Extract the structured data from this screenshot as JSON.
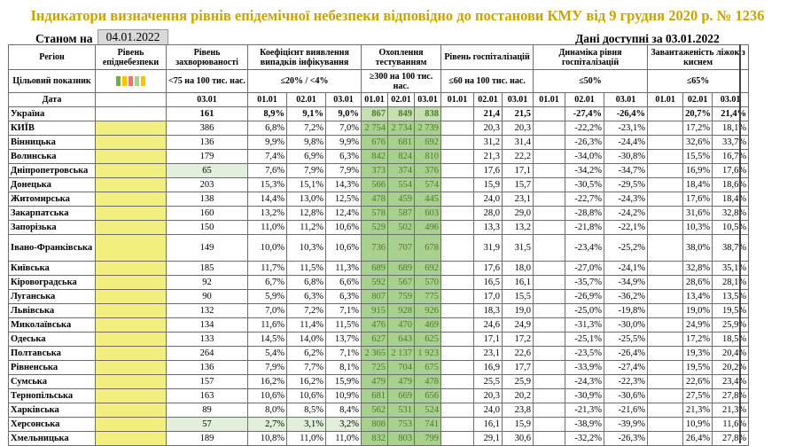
{
  "title": "Індикатори визначення рівнів епідемічної небезпеки відповідно до постанови КМУ від 9 грудня 2020 р. № 1236",
  "asof_label": "Станом на",
  "asof_date": "04.01.2022",
  "available_label": "Дані доступні за 03.01.2022",
  "headers": {
    "region": "Регіон",
    "target": "Цільовий показник",
    "date": "Дата",
    "level": "Рівень епіднебезпеки",
    "incidence": "Рівень захворюваності",
    "incidence_target": "<75 на 100 тис. нас.",
    "positivity": "Коефіцієнт виявлення випадків інфікування",
    "positivity_target": "≤20% / <4%",
    "testing": "Охоплення тестуванням",
    "testing_target": "≥300 на 100 тис. нас.",
    "hosp": "Рівень госпіталізацій",
    "hosp_target": "≤60 на 100 тис. нас.",
    "hosp_dyn": "Динаміка рівня госпіталізацій",
    "hosp_dyn_target": "≤50%",
    "oxygen": "Завантаженість ліжок з киснем",
    "oxygen_target": "≤65%"
  },
  "dates": {
    "d0301": "03.01",
    "d0101": "01.01",
    "d0201": "02.01"
  },
  "level_colors": [
    "#70ad47",
    "#ffc000",
    "#ff6d6d",
    "#a9d08e",
    "#ffc000"
  ],
  "rows": [
    {
      "region": "Україна",
      "inc": "161",
      "pos": [
        "8,9%",
        "9,1%",
        "9,0%"
      ],
      "test": [
        "867",
        "849",
        "838"
      ],
      "hosp": [
        "",
        "21,4",
        "21,5"
      ],
      "dyn": [
        "",
        "-27,4%",
        "-26,4%"
      ],
      "oxy": [
        "",
        "20,7%",
        "21,4%"
      ],
      "bold": true
    },
    {
      "region": "КИЇВ",
      "inc": "386",
      "pos": [
        "6,8%",
        "7,2%",
        "7,0%"
      ],
      "test": [
        "2 754",
        "2 734",
        "2 739"
      ],
      "hosp": [
        "",
        "20,3",
        "20,3"
      ],
      "dyn": [
        "",
        "-22,2%",
        "-23,1%"
      ],
      "oxy": [
        "",
        "17,2%",
        "18,1%"
      ]
    },
    {
      "region": "Вінницька",
      "inc": "136",
      "pos": [
        "9,9%",
        "9,8%",
        "9,9%"
      ],
      "test": [
        "676",
        "681",
        "692"
      ],
      "hosp": [
        "",
        "31,2",
        "31,4"
      ],
      "dyn": [
        "",
        "-26,3%",
        "-24,4%"
      ],
      "oxy": [
        "",
        "32,6%",
        "33,7%"
      ]
    },
    {
      "region": "Волинська",
      "inc": "179",
      "pos": [
        "7,4%",
        "6,9%",
        "6,3%"
      ],
      "test": [
        "842",
        "824",
        "810"
      ],
      "hosp": [
        "",
        "21,3",
        "22,2"
      ],
      "dyn": [
        "",
        "-34,0%",
        "-30,8%"
      ],
      "oxy": [
        "",
        "15,5%",
        "16,7%"
      ]
    },
    {
      "region": "Дніпропетровська",
      "inc": "65",
      "pos": [
        "7,6%",
        "7,9%",
        "7,9%"
      ],
      "test": [
        "373",
        "374",
        "376"
      ],
      "hosp": [
        "",
        "17,6",
        "17,1"
      ],
      "dyn": [
        "",
        "-34,2%",
        "-34,7%"
      ],
      "oxy": [
        "",
        "16,9%",
        "17,6%"
      ],
      "incgreen": true
    },
    {
      "region": "Донецька",
      "inc": "203",
      "pos": [
        "15,3%",
        "15,1%",
        "14,3%"
      ],
      "test": [
        "566",
        "554",
        "574"
      ],
      "hosp": [
        "",
        "15,9",
        "15,7"
      ],
      "dyn": [
        "",
        "-30,5%",
        "-29,5%"
      ],
      "oxy": [
        "",
        "18,4%",
        "18,6%"
      ]
    },
    {
      "region": "Житомирська",
      "inc": "138",
      "pos": [
        "14,4%",
        "13,0%",
        "12,5%"
      ],
      "test": [
        "478",
        "459",
        "445"
      ],
      "hosp": [
        "",
        "24,0",
        "23,1"
      ],
      "dyn": [
        "",
        "-22,7%",
        "-24,3%"
      ],
      "oxy": [
        "",
        "17,6%",
        "18,4%"
      ]
    },
    {
      "region": "Закарпатська",
      "inc": "160",
      "pos": [
        "13,2%",
        "12,8%",
        "12,4%"
      ],
      "test": [
        "578",
        "587",
        "603"
      ],
      "hosp": [
        "",
        "28,0",
        "29,0"
      ],
      "dyn": [
        "",
        "-28,8%",
        "-24,2%"
      ],
      "oxy": [
        "",
        "31,6%",
        "32,8%"
      ]
    },
    {
      "region": "Запорізька",
      "inc": "150",
      "pos": [
        "11,0%",
        "11,2%",
        "10,6%"
      ],
      "test": [
        "529",
        "502",
        "496"
      ],
      "hosp": [
        "",
        "13,3",
        "13,2"
      ],
      "dyn": [
        "",
        "-21,8%",
        "-22,1%"
      ],
      "oxy": [
        "",
        "10,3%",
        "10,5%"
      ]
    },
    {
      "region": "Івано-Франківська",
      "inc": "149",
      "pos": [
        "10,0%",
        "10,3%",
        "10,6%"
      ],
      "test": [
        "736",
        "707",
        "678"
      ],
      "hosp": [
        "",
        "31,9",
        "31,5"
      ],
      "dyn": [
        "",
        "-23,4%",
        "-25,2%"
      ],
      "oxy": [
        "",
        "38,0%",
        "38,7%"
      ],
      "tall": true
    },
    {
      "region": "Київська",
      "inc": "185",
      "pos": [
        "11,7%",
        "11,5%",
        "11,3%"
      ],
      "test": [
        "689",
        "689",
        "692"
      ],
      "hosp": [
        "",
        "17,6",
        "18,0"
      ],
      "dyn": [
        "",
        "-27,0%",
        "-24,1%"
      ],
      "oxy": [
        "",
        "32,8%",
        "35,1%"
      ]
    },
    {
      "region": "Кіровоградська",
      "inc": "92",
      "pos": [
        "6,7%",
        "6,8%",
        "6,6%"
      ],
      "test": [
        "592",
        "567",
        "570"
      ],
      "hosp": [
        "",
        "16,5",
        "16,1"
      ],
      "dyn": [
        "",
        "-35,7%",
        "-34,9%"
      ],
      "oxy": [
        "",
        "28,6%",
        "28,1%"
      ]
    },
    {
      "region": "Луганська",
      "inc": "90",
      "pos": [
        "5,9%",
        "6,3%",
        "6,3%"
      ],
      "test": [
        "807",
        "759",
        "775"
      ],
      "hosp": [
        "",
        "17,0",
        "15,5"
      ],
      "dyn": [
        "",
        "-26,9%",
        "-36,2%"
      ],
      "oxy": [
        "",
        "13,4%",
        "13,5%"
      ]
    },
    {
      "region": "Львівська",
      "inc": "132",
      "pos": [
        "7,0%",
        "7,2%",
        "7,1%"
      ],
      "test": [
        "915",
        "928",
        "926"
      ],
      "hosp": [
        "",
        "18,3",
        "19,0"
      ],
      "dyn": [
        "",
        "-25,0%",
        "-19,8%"
      ],
      "oxy": [
        "",
        "19,0%",
        "19,5%"
      ]
    },
    {
      "region": "Миколаївська",
      "inc": "134",
      "pos": [
        "11,6%",
        "11,4%",
        "11,5%"
      ],
      "test": [
        "476",
        "470",
        "469"
      ],
      "hosp": [
        "",
        "24,6",
        "24,9"
      ],
      "dyn": [
        "",
        "-31,3%",
        "-30,0%"
      ],
      "oxy": [
        "",
        "24,9%",
        "25,9%"
      ]
    },
    {
      "region": "Одеська",
      "inc": "133",
      "pos": [
        "14,5%",
        "14,0%",
        "13,7%"
      ],
      "test": [
        "627",
        "643",
        "625"
      ],
      "hosp": [
        "",
        "17,1",
        "17,2"
      ],
      "dyn": [
        "",
        "-25,1%",
        "-25,5%"
      ],
      "oxy": [
        "",
        "17,2%",
        "18,5%"
      ]
    },
    {
      "region": "Полтавська",
      "inc": "264",
      "pos": [
        "5,4%",
        "6,2%",
        "7,1%"
      ],
      "test": [
        "2 365",
        "2 137",
        "1 923"
      ],
      "hosp": [
        "",
        "23,1",
        "22,6"
      ],
      "dyn": [
        "",
        "-23,5%",
        "-26,4%"
      ],
      "oxy": [
        "",
        "19,3%",
        "20,4%"
      ]
    },
    {
      "region": "Рівненська",
      "inc": "136",
      "pos": [
        "7,9%",
        "7,7%",
        "8,1%"
      ],
      "test": [
        "725",
        "704",
        "675"
      ],
      "hosp": [
        "",
        "16,9",
        "17,7"
      ],
      "dyn": [
        "",
        "-33,9%",
        "-27,4%"
      ],
      "oxy": [
        "",
        "19,5%",
        "20,2%"
      ]
    },
    {
      "region": "Сумська",
      "inc": "157",
      "pos": [
        "16,2%",
        "16,2%",
        "15,9%"
      ],
      "test": [
        "479",
        "479",
        "478"
      ],
      "hosp": [
        "",
        "25,5",
        "25,9"
      ],
      "dyn": [
        "",
        "-24,3%",
        "-22,3%"
      ],
      "oxy": [
        "",
        "22,6%",
        "23,4%"
      ]
    },
    {
      "region": "Тернопільська",
      "inc": "163",
      "pos": [
        "10,6%",
        "10,6%",
        "10,9%"
      ],
      "test": [
        "681",
        "669",
        "656"
      ],
      "hosp": [
        "",
        "20,3",
        "20,2"
      ],
      "dyn": [
        "",
        "-30,9%",
        "-30,6%"
      ],
      "oxy": [
        "",
        "27,5%",
        "27,8%"
      ]
    },
    {
      "region": "Харківська",
      "inc": "89",
      "pos": [
        "8,0%",
        "8,5%",
        "8,4%"
      ],
      "test": [
        "562",
        "531",
        "524"
      ],
      "hosp": [
        "",
        "24,0",
        "23,8"
      ],
      "dyn": [
        "",
        "-21,3%",
        "-21,6%"
      ],
      "oxy": [
        "",
        "21,3%",
        "21,3%"
      ]
    },
    {
      "region": "Херсонська",
      "inc": "57",
      "pos": [
        "2,7%",
        "3,1%",
        "3,2%"
      ],
      "test": [
        "808",
        "753",
        "741"
      ],
      "hosp": [
        "",
        "16,1",
        "15,9"
      ],
      "dyn": [
        "",
        "-38,9%",
        "-39,9%"
      ],
      "oxy": [
        "",
        "10,9%",
        "11,6%"
      ],
      "incgreen": true,
      "posgreen": true
    },
    {
      "region": "Хмельницька",
      "inc": "189",
      "pos": [
        "10,8%",
        "11,0%",
        "11,0%"
      ],
      "test": [
        "832",
        "803",
        "799"
      ],
      "hosp": [
        "",
        "29,1",
        "30,6"
      ],
      "dyn": [
        "",
        "-32,2%",
        "-26,3%"
      ],
      "oxy": [
        "",
        "26,4%",
        "27,8%"
      ]
    }
  ]
}
